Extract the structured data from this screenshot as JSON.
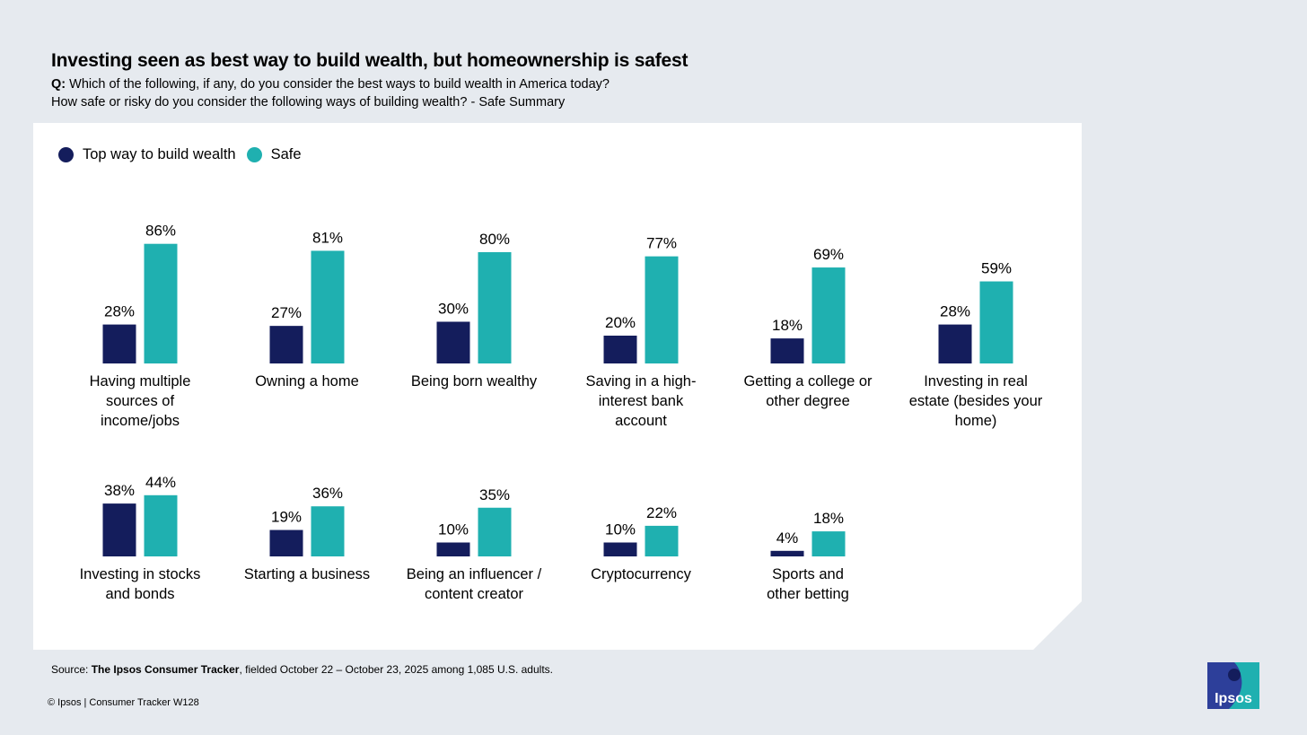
{
  "header": {
    "title": "Investing seen as best way to build wealth, but homeownership is safest",
    "question_prefix": "Q:",
    "question_line1": "Which of the following, if any, do you consider the best ways to build wealth in America today?",
    "question_line2": "How safe or risky do you consider the following ways of building wealth? - Safe Summary"
  },
  "chart_data": {
    "type": "bar",
    "categories": [
      "Having multiple sources of income/jobs",
      "Owning a home",
      "Being born wealthy",
      "Saving in a high-interest bank account",
      "Getting a college or other degree",
      "Investing in real estate (besides your home)",
      "Investing in stocks and bonds",
      "Starting a business",
      "Being an influencer / content creator",
      "Cryptocurrency",
      "Sports and other betting"
    ],
    "category_lines": [
      [
        "Having multiple",
        "sources of",
        "income/jobs"
      ],
      [
        "Owning a home"
      ],
      [
        "Being born wealthy"
      ],
      [
        "Saving in a high-",
        "interest bank",
        "account"
      ],
      [
        "Getting a college or",
        "other degree"
      ],
      [
        "Investing in real",
        "estate (besides your",
        "home)"
      ],
      [
        "Investing in stocks",
        "and bonds"
      ],
      [
        "Starting a business"
      ],
      [
        "Being an influencer /",
        "content creator"
      ],
      [
        "Cryptocurrency"
      ],
      [
        "Sports and",
        "other betting"
      ]
    ],
    "series": [
      {
        "name": "Top way to build wealth",
        "color": "#141d5c",
        "values": [
          28,
          27,
          30,
          20,
          18,
          28,
          38,
          19,
          10,
          10,
          4
        ]
      },
      {
        "name": "Safe",
        "color": "#1fb0b0",
        "values": [
          86,
          81,
          80,
          77,
          69,
          59,
          44,
          36,
          35,
          22,
          18
        ]
      }
    ],
    "value_suffix": "%",
    "ylim": [
      0,
      100
    ],
    "legend": "top-left",
    "grid": false
  },
  "footer": {
    "source_prefix": "Source:",
    "source_bold": "The Ipsos Consumer Tracker",
    "source_rest": ", fielded October 22 – October 23, 2025 among 1,085 U.S. adults.",
    "copyright": "© Ipsos | Consumer Tracker W128",
    "logo_text": "Ipsos"
  }
}
